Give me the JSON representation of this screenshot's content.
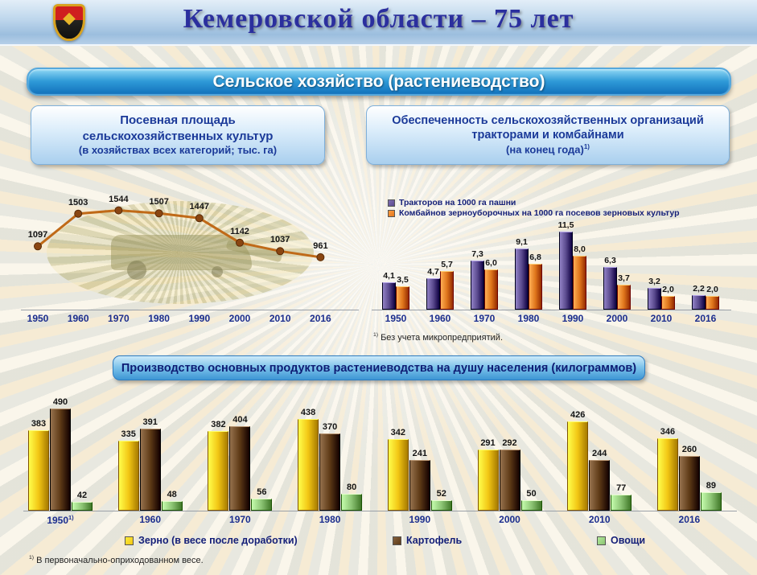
{
  "header": {
    "title": "Кемеровской области – 75 лет",
    "emblem": "kemerovo-coat-of-arms"
  },
  "section_title": "Сельское хозяйство (растениеводство)",
  "panels": {
    "sown_area": {
      "title_lines": [
        "Посевная площадь",
        "сельскохозяйственных культур",
        "(в хозяйствах всех категорий; тыс. га)"
      ]
    },
    "machinery": {
      "title_lines": [
        "Обеспеченность сельскохозяйственных организаций",
        "тракторами и комбайнами",
        "(на конец года)"
      ],
      "footnote_ref": "1)",
      "footnote_text": "Без учета микропредприятий."
    },
    "production": {
      "title": "Производство основных продуктов растениеводства на душу населения  (килограммов)",
      "footnote_ref": "1)",
      "footnote_text": "В первоначально-оприходованном весе."
    }
  },
  "chart_data": [
    {
      "id": "sown_area",
      "type": "line",
      "title": "Посевная площадь сельскохозяйственных культур (в хозяйствах всех категорий; тыс. га)",
      "categories": [
        "1950",
        "1960",
        "1970",
        "1980",
        "1990",
        "2000",
        "2010",
        "2016"
      ],
      "values": [
        1097,
        1503,
        1544,
        1507,
        1447,
        1142,
        1037,
        961
      ],
      "xlabel": "",
      "ylabel": "тыс. га",
      "ylim": [
        700,
        1700
      ],
      "grid": false,
      "legend_position": "none",
      "line_color": "#c06a18",
      "point_color": "#8a4612"
    },
    {
      "id": "machinery",
      "type": "bar",
      "title": "Обеспеченность сельскохозяйственных организаций тракторами и комбайнами (на конец года)",
      "categories": [
        "1950",
        "1960",
        "1970",
        "1980",
        "1990",
        "2000",
        "2010",
        "2016"
      ],
      "series": [
        {
          "name": "Тракторов на 1000 га пашни",
          "color": "#5a4a8e",
          "values": [
            4.1,
            4.7,
            7.3,
            9.1,
            11.5,
            6.3,
            3.2,
            2.2
          ],
          "labels": [
            "4,1",
            "4,7",
            "7,3",
            "9,1",
            "11,5",
            "6,3",
            "3,2",
            "2,2"
          ]
        },
        {
          "name": "Комбайнов зерноуборочных на 1000 га посевов зерновых культур",
          "color": "#e0761c",
          "values": [
            3.5,
            5.7,
            6.0,
            6.8,
            8.0,
            3.7,
            2.0,
            2.0
          ],
          "labels": [
            "3,5",
            "5,7",
            "6,0",
            "6,8",
            "8,0",
            "3,7",
            "2,0",
            "2,0"
          ]
        }
      ],
      "xlabel": "",
      "ylabel": "",
      "ylim": [
        0,
        12.5
      ],
      "grid": false,
      "legend_position": "top-left"
    },
    {
      "id": "production",
      "type": "bar",
      "title": "Производство основных продуктов растениеводства на душу населения (килограммов)",
      "categories": [
        "1950",
        "1960",
        "1970",
        "1980",
        "1990",
        "2000",
        "2010",
        "2016"
      ],
      "category_notes": [
        "1)",
        "",
        "",
        "",
        "",
        "",
        "",
        ""
      ],
      "series": [
        {
          "name": "Зерно (в весе после доработки)",
          "color": "#f2c614",
          "values": [
            383,
            335,
            382,
            438,
            342,
            291,
            426,
            346
          ]
        },
        {
          "name": "Картофель",
          "color": "#5e3a16",
          "values": [
            490,
            391,
            404,
            370,
            241,
            292,
            244,
            260
          ]
        },
        {
          "name": "Овощи",
          "color": "#8cc474",
          "values": [
            42,
            48,
            56,
            80,
            52,
            50,
            77,
            89
          ]
        }
      ],
      "xlabel": "",
      "ylabel": "кг",
      "ylim": [
        0,
        520
      ],
      "grid": false,
      "legend_position": "bottom"
    }
  ]
}
